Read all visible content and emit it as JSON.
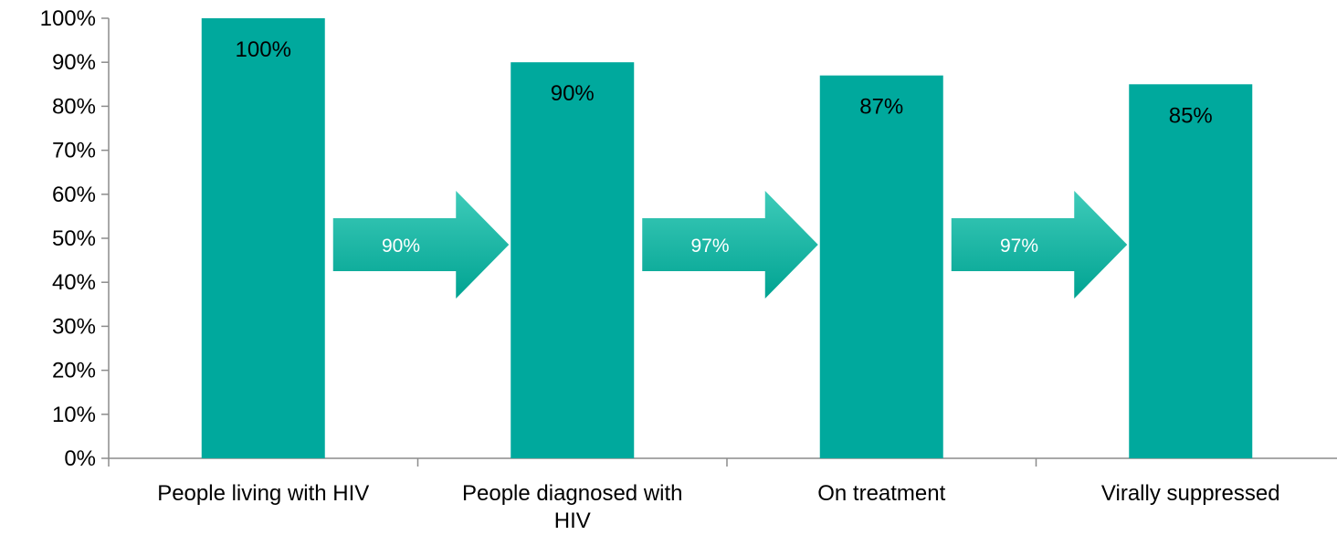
{
  "chart_data": {
    "type": "bar",
    "title": "",
    "xlabel": "",
    "ylabel": "",
    "ylim": [
      0,
      100
    ],
    "y_unit": "%",
    "y_ticks": [
      0,
      10,
      20,
      30,
      40,
      50,
      60,
      70,
      80,
      90,
      100
    ],
    "categories": [
      [
        "People living with HIV"
      ],
      [
        "People diagnosed with",
        "HIV"
      ],
      [
        "On treatment"
      ],
      [
        "Virally suppressed"
      ]
    ],
    "values": [
      100,
      90,
      87,
      85
    ],
    "data_labels": [
      "100%",
      "90%",
      "87%",
      "85%"
    ],
    "transitions": [
      {
        "from": 0,
        "to": 1,
        "label": "90%",
        "value": 90
      },
      {
        "from": 1,
        "to": 2,
        "label": "97%",
        "value": 97
      },
      {
        "from": 2,
        "to": 3,
        "label": "97%",
        "value": 97
      }
    ],
    "grid": false,
    "legend": "none"
  },
  "colors": {
    "bar": "#00A99D",
    "arrow_light": "#3ECBB9",
    "arrow_dark": "#00A392",
    "axis": "#8C8C8C",
    "text": "#000000",
    "arrow_text": "#FFFFFF"
  }
}
